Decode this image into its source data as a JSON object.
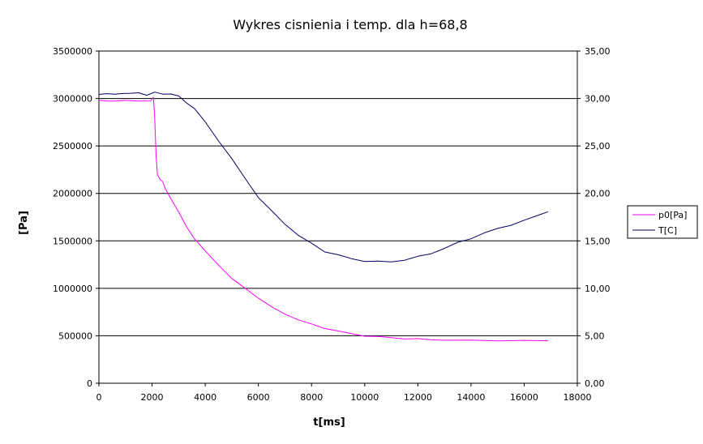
{
  "chart_data": {
    "type": "line",
    "title": "Wykres cisnienia i temp. dla h=68,8",
    "xlabel": "t[ms]",
    "ylabel": "[Pa]",
    "xlim": [
      0,
      18000
    ],
    "ylim": [
      0,
      3500000
    ],
    "y2lim": [
      0,
      35
    ],
    "x_ticks": [
      "0",
      "2000",
      "4000",
      "6000",
      "8000",
      "10000",
      "12000",
      "14000",
      "16000",
      "18000"
    ],
    "y_ticks": [
      "0",
      "500000",
      "1000000",
      "1500000",
      "2000000",
      "2500000",
      "3000000",
      "3500000"
    ],
    "y2_ticks": [
      "0,00",
      "5,00",
      "10,00",
      "15,00",
      "20,00",
      "25,00",
      "30,00",
      "35,00"
    ],
    "grid": "horizontal",
    "legend_position": "right",
    "series": [
      {
        "name": "p0[Pa]",
        "axis": "left",
        "color": "#ff00ff",
        "x": [
          0,
          500,
          1000,
          1500,
          1950,
          2050,
          2100,
          2150,
          2200,
          2300,
          2400,
          2500,
          2700,
          3000,
          3300,
          3600,
          4000,
          4500,
          5000,
          5500,
          6000,
          6500,
          7000,
          7500,
          8000,
          8500,
          9000,
          9500,
          10000,
          10500,
          11000,
          11500,
          12000,
          12500,
          13000,
          14000,
          15000,
          16000,
          16900
        ],
        "values": [
          2980000,
          2975000,
          2975000,
          2975000,
          2975000,
          3010000,
          2800000,
          2400000,
          2200000,
          2150000,
          2120000,
          2050000,
          1950000,
          1800000,
          1650000,
          1520000,
          1390000,
          1250000,
          1100000,
          1000000,
          900000,
          800000,
          730000,
          670000,
          620000,
          580000,
          550000,
          520000,
          500000,
          490000,
          480000,
          470000,
          465000,
          460000,
          455000,
          450000,
          450000,
          450000,
          445000
        ]
      },
      {
        "name": "T[C]",
        "axis": "right",
        "color": "#000066",
        "x": [
          0,
          300,
          600,
          900,
          1200,
          1500,
          1800,
          2100,
          2400,
          2700,
          3000,
          3300,
          3600,
          4000,
          4500,
          5000,
          5500,
          6000,
          6500,
          7000,
          7500,
          8000,
          8500,
          9000,
          9500,
          10000,
          10500,
          11000,
          11500,
          12000,
          12500,
          13000,
          13500,
          14000,
          14500,
          15000,
          15500,
          16000,
          16500,
          16900
        ],
        "values": [
          30.5,
          30.5,
          30.4,
          30.6,
          30.5,
          30.6,
          30.4,
          30.6,
          30.5,
          30.5,
          30.2,
          29.6,
          28.9,
          27.5,
          25.6,
          23.6,
          21.6,
          19.6,
          18.1,
          16.8,
          15.6,
          14.7,
          13.9,
          13.5,
          13.1,
          12.9,
          12.8,
          12.8,
          13.0,
          13.3,
          13.7,
          14.2,
          14.8,
          15.3,
          15.8,
          16.3,
          16.7,
          17.1,
          17.7,
          18.1
        ]
      }
    ]
  }
}
